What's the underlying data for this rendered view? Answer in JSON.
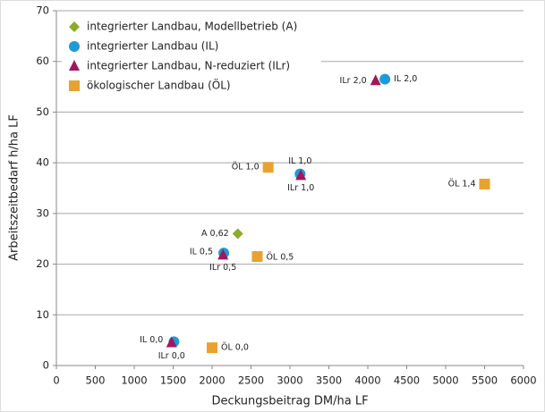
{
  "chart_data": {
    "type": "scatter",
    "xlabel": "Deckungsbeitrag DM/ha LF",
    "ylabel": "Arbeitszeitbedarf h/ha LF",
    "xlim": [
      0,
      6000
    ],
    "xticks": [
      0,
      500,
      1000,
      1500,
      2000,
      2500,
      3000,
      3500,
      4000,
      4500,
      5000,
      5500,
      6000
    ],
    "ylim": [
      0,
      70
    ],
    "yticks": [
      0,
      10,
      20,
      30,
      40,
      50,
      60,
      70
    ],
    "grid": true,
    "legend": "upper left",
    "series": [
      {
        "name": "integrierter Landbau, Modellbetrieb (A)",
        "color": "#8cab2c",
        "marker": "diamond",
        "x": [
          2330
        ],
        "values": [
          26
        ],
        "point_labels": [
          "A 0,62"
        ]
      },
      {
        "name": "integrierter Landbau (IL)",
        "color": "#1e9bd7",
        "marker": "circle",
        "x": [
          1510,
          2150,
          3130,
          4220
        ],
        "values": [
          4.7,
          22.2,
          37.8,
          56.5
        ],
        "point_labels": [
          "IL 0,0",
          "IL 0,5",
          "IL 1,0",
          "IL 2,0"
        ]
      },
      {
        "name": "integrierter Landbau, N-reduziert (ILr)",
        "color": "#a3165c",
        "marker": "triangle",
        "x": [
          1480,
          2140,
          3140,
          4100
        ],
        "values": [
          4.5,
          21.8,
          37.5,
          56.2
        ],
        "point_labels": [
          "ILr 0,0",
          "ILr 0,5",
          "ILr 1,0",
          "ILr 2,0"
        ]
      },
      {
        "name": "ökologischer Landbau (ÖL)",
        "color": "#e9a22f",
        "marker": "square",
        "x": [
          2000,
          2580,
          2720,
          5500
        ],
        "values": [
          3.5,
          21.5,
          39.1,
          35.8
        ],
        "point_labels": [
          "ÖL 0,0",
          "ÖL 0,5",
          "ÖL 1,0",
          "ÖL 1,4"
        ]
      }
    ]
  }
}
